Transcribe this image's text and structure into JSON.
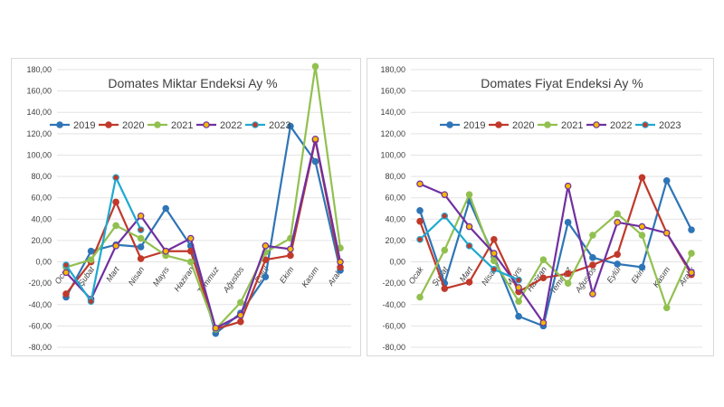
{
  "chart_data": [
    {
      "type": "line",
      "title": "Domates Miktar Endeksi Ay  %",
      "xlabel": "",
      "ylabel": "",
      "ylim": [
        -80,
        180
      ],
      "yticks": [
        "-80,00",
        "-60,00",
        "-40,00",
        "-20,00",
        "0,00",
        "20,00",
        "40,00",
        "60,00",
        "80,00",
        "100,00",
        "120,00",
        "140,00",
        "160,00",
        "180,00"
      ],
      "categories": [
        "Ocak",
        "Şubat",
        "Mart",
        "Nisan",
        "Mayıs",
        "Haziran",
        "Temmuz",
        "Ağustos",
        "Eylül",
        "Ekim",
        "Kasım",
        "Aralık"
      ],
      "legend_position": "top",
      "grid": true,
      "series": [
        {
          "name": "2019",
          "color": "#2e75b6",
          "marker_fill": "#2e75b6",
          "values": [
            -33,
            10,
            16,
            14,
            50,
            15,
            -67,
            -48,
            -14,
            127,
            94,
            -8
          ]
        },
        {
          "name": "2020",
          "color": "#c0392b",
          "marker_fill": "#c0392b",
          "values": [
            -30,
            0,
            56,
            3,
            10,
            10,
            -63,
            -56,
            2,
            6,
            114,
            -5
          ]
        },
        {
          "name": "2021",
          "color": "#92c050",
          "marker_fill": "#92c050",
          "values": [
            -5,
            2,
            34,
            22,
            6,
            0,
            -63,
            -38,
            9,
            22,
            183,
            13
          ]
        },
        {
          "name": "2022",
          "color": "#7030a0",
          "marker_fill": "#f5b800",
          "values": [
            -10,
            -35,
            15,
            43,
            10,
            22,
            -62,
            -50,
            15,
            12,
            115,
            0
          ]
        },
        {
          "name": "2023",
          "color": "#1fa9cf",
          "marker_fill": "#c0392b",
          "values": [
            -3,
            -37,
            79,
            30,
            null,
            null,
            null,
            null,
            null,
            null,
            null,
            null
          ]
        }
      ]
    },
    {
      "type": "line",
      "title": "Domates Fiyat Endeksi Ay %",
      "xlabel": "",
      "ylabel": "",
      "ylim": [
        -80,
        180
      ],
      "yticks": [
        "-80,00",
        "-60,00",
        "-40,00",
        "-20,00",
        "0,00",
        "20,00",
        "40,00",
        "60,00",
        "80,00",
        "100,00",
        "120,00",
        "140,00",
        "160,00",
        "180,00"
      ],
      "categories": [
        "Ocak",
        "Şubat",
        "Mart",
        "Nisan",
        "Mayıs",
        "Haziran",
        "Temmuz",
        "Ağustos",
        "Eylül",
        "Ekim",
        "Kasım",
        "Aralık"
      ],
      "legend_position": "top",
      "grid": true,
      "series": [
        {
          "name": "2019",
          "color": "#2e75b6",
          "marker_fill": "#2e75b6",
          "values": [
            48,
            -20,
            57,
            5,
            -51,
            -60,
            37,
            4,
            -2,
            -5,
            76,
            30
          ]
        },
        {
          "name": "2020",
          "color": "#c0392b",
          "marker_fill": "#c0392b",
          "values": [
            38,
            -25,
            -19,
            21,
            -28,
            -15,
            -11,
            -3,
            7,
            79,
            27,
            -12
          ]
        },
        {
          "name": "2021",
          "color": "#92c050",
          "marker_fill": "#92c050",
          "values": [
            -33,
            11,
            63,
            1,
            -37,
            2,
            -20,
            25,
            45,
            25,
            -43,
            8
          ]
        },
        {
          "name": "2022",
          "color": "#7030a0",
          "marker_fill": "#f5b800",
          "values": [
            73,
            63,
            33,
            8,
            -24,
            -57,
            71,
            -30,
            37,
            33,
            27,
            -10
          ]
        },
        {
          "name": "2023",
          "color": "#1fa9cf",
          "marker_fill": "#c0392b",
          "values": [
            21,
            43,
            15,
            -7,
            -17,
            null,
            null,
            null,
            null,
            null,
            null,
            null
          ]
        }
      ]
    }
  ]
}
